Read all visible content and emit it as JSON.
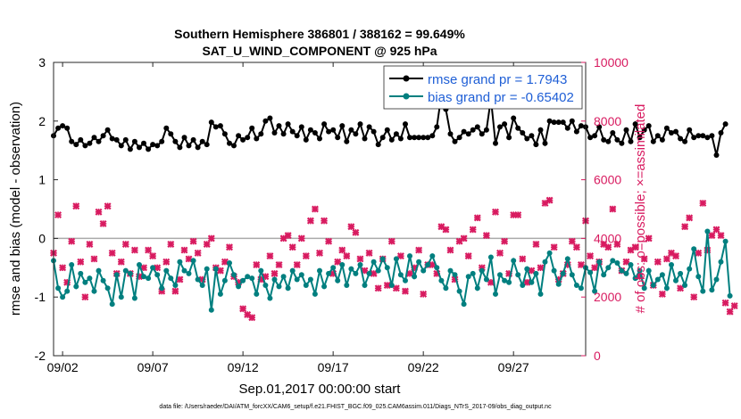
{
  "chart_data": {
    "type": "line",
    "title": [
      "Southern Hemisphere 386801 / 388162 = 99.649%",
      "SAT_U_WIND_COMPONENT @ 925 hPa"
    ],
    "xlabel": "Sep.01,2017 00:00:00 start",
    "ylabel_left": "rmse and bias (model - observation)",
    "ylabel_right": "# of obs: o=possible; ×=assimilated",
    "x_ticks": [
      {
        "day": 2,
        "label": "09/02"
      },
      {
        "day": 7,
        "label": "09/07"
      },
      {
        "day": 12,
        "label": "09/12"
      },
      {
        "day": 17,
        "label": "09/17"
      },
      {
        "day": 22,
        "label": "09/22"
      },
      {
        "day": 27,
        "label": "09/27"
      }
    ],
    "xlim": [
      1.5,
      31.0
    ],
    "ylim_left": [
      -2,
      3
    ],
    "yticks_left": [
      "-2",
      "-1",
      "0",
      "1",
      "2",
      "3"
    ],
    "ylim_right": [
      0,
      10000
    ],
    "yticks_right": [
      "0",
      "2000",
      "4000",
      "6000",
      "8000",
      "10000"
    ],
    "zero_line": 0,
    "legend": {
      "location": "top-right",
      "entries": [
        "rmse grand pr = 1.7943",
        "bias grand pr = -0.65402"
      ]
    },
    "x_start": 1.5,
    "x_step": 0.25,
    "series": [
      {
        "name": "rmse",
        "axis": "left",
        "color": "#000000",
        "values": [
          1.75,
          1.88,
          1.92,
          1.88,
          1.65,
          1.6,
          1.68,
          1.58,
          1.62,
          1.72,
          1.65,
          1.75,
          1.85,
          1.7,
          1.68,
          1.58,
          1.68,
          1.52,
          1.65,
          1.55,
          1.62,
          1.52,
          1.6,
          1.58,
          1.65,
          1.88,
          1.78,
          1.65,
          1.55,
          1.72,
          1.58,
          1.68,
          1.55,
          1.65,
          1.6,
          1.98,
          1.9,
          1.92,
          1.78,
          1.62,
          1.58,
          1.75,
          1.68,
          1.72,
          1.88,
          1.7,
          1.78,
          2.0,
          2.05,
          1.8,
          1.92,
          1.78,
          1.95,
          1.82,
          1.75,
          1.9,
          1.68,
          1.85,
          1.8,
          1.7,
          1.95,
          1.82,
          1.85,
          1.72,
          1.92,
          1.65,
          1.85,
          1.78,
          1.95,
          1.7,
          1.9,
          1.82,
          1.6,
          1.72,
          1.85,
          1.68,
          1.78,
          1.7,
          1.95,
          1.72,
          1.72,
          1.72,
          1.72,
          1.72,
          1.75,
          1.9,
          2.45,
          2.2,
          1.78,
          1.65,
          1.72,
          1.82,
          1.78,
          1.85,
          1.9,
          1.78,
          1.85,
          2.38,
          1.62,
          1.9,
          1.95,
          1.72,
          2.05,
          1.88,
          1.8,
          1.7,
          1.75,
          1.6,
          1.85,
          1.62,
          2.0,
          1.98,
          1.98,
          1.98,
          1.88,
          2.0,
          1.82,
          1.92,
          1.9,
          1.72,
          1.75,
          1.9,
          1.68,
          1.65,
          1.8,
          1.68,
          1.62,
          1.85,
          1.65,
          1.95,
          1.72,
          1.85,
          1.92,
          1.65,
          1.75,
          1.68,
          1.88,
          1.8,
          1.82,
          1.7,
          1.65,
          1.85,
          1.72,
          1.75,
          1.75,
          1.72,
          1.75,
          1.42,
          1.8,
          1.95
        ]
      },
      {
        "name": "bias",
        "axis": "left",
        "color": "#007f7f",
        "values": [
          -0.38,
          -0.85,
          -1.0,
          -0.9,
          -0.45,
          -0.82,
          -0.6,
          -0.75,
          -0.68,
          -0.9,
          -0.55,
          -0.72,
          -0.85,
          -1.12,
          -0.62,
          -1.0,
          -0.55,
          -0.6,
          -1.02,
          -0.45,
          -0.65,
          -0.68,
          -0.5,
          -0.62,
          -0.85,
          -0.55,
          -0.68,
          -0.8,
          -0.4,
          -0.55,
          -0.6,
          -0.38,
          -0.7,
          -0.8,
          -0.52,
          -1.22,
          -0.52,
          -0.95,
          -0.72,
          -0.42,
          -0.62,
          -0.82,
          -0.72,
          -0.65,
          -0.68,
          -0.95,
          -0.55,
          -0.8,
          -1.02,
          -0.7,
          -0.82,
          -0.65,
          -0.85,
          -0.55,
          -0.7,
          -0.62,
          -0.8,
          -0.7,
          -0.95,
          -0.55,
          -0.82,
          -0.6,
          -0.5,
          -0.72,
          -0.45,
          -0.8,
          -0.52,
          -0.6,
          -0.45,
          -0.8,
          -0.6,
          -0.4,
          -0.55,
          -0.35,
          -0.5,
          -0.8,
          -0.35,
          -0.62,
          -0.72,
          -0.3,
          -0.65,
          -0.4,
          -0.55,
          -0.45,
          -0.3,
          -0.5,
          -0.72,
          -0.85,
          -0.55,
          -0.62,
          -0.9,
          -1.12,
          -0.65,
          -0.6,
          -0.85,
          -0.55,
          -0.7,
          -0.32,
          -0.95,
          -0.62,
          -0.72,
          -0.75,
          -0.38,
          -0.62,
          -0.8,
          -0.52,
          -0.75,
          -0.6,
          -0.95,
          -0.4,
          -0.25,
          -0.55,
          -0.78,
          -0.6,
          -0.35,
          -0.62,
          -0.8,
          -0.85,
          -0.5,
          -0.58,
          -0.9,
          -0.4,
          -0.62,
          -0.5,
          -0.38,
          -0.42,
          -0.55,
          -0.6,
          -0.45,
          -0.68,
          -0.55,
          -0.85,
          -0.55,
          -0.8,
          -0.7,
          -0.62,
          -0.85,
          -0.45,
          -0.72,
          -0.6,
          -0.8,
          -0.52,
          -0.18,
          -0.65,
          -0.9,
          0.12,
          -0.88,
          -0.7,
          -0.4,
          -0.05,
          -0.98
        ]
      }
    ],
    "obs_possible_note": "circle markers hidden under crosses",
    "assimilated": {
      "name": "# assimilated",
      "axis": "right",
      "color": "#d81b60",
      "x_start": 1.5,
      "x_step": 0.25,
      "values": [
        3500,
        4800,
        3000,
        2500,
        3900,
        5100,
        3200,
        2000,
        3800,
        3300,
        4900,
        4500,
        5100,
        3500,
        2800,
        3200,
        3800,
        2800,
        3600,
        2700,
        3000,
        3600,
        3400,
        3000,
        2200,
        3200,
        3800,
        2200,
        2600,
        3600,
        3300,
        3900,
        3500,
        2600,
        3800,
        4000,
        3000,
        2900,
        3200,
        3700,
        2700,
        2500,
        1600,
        1400,
        1300,
        3100,
        2600,
        2700,
        3400,
        2800,
        3100,
        4000,
        4100,
        3700,
        3100,
        4000,
        3400,
        4600,
        5000,
        3500,
        4600,
        3900,
        2800,
        3200,
        3600,
        3400,
        4400,
        4200,
        3300,
        2900,
        3500,
        2800,
        2300,
        3300,
        2400,
        3900,
        2300,
        3400,
        2200,
        2800,
        3000,
        3600,
        2100,
        3100,
        3100,
        2800,
        4400,
        4300,
        3600,
        2600,
        3900,
        4000,
        3400,
        4300,
        4700,
        3000,
        4100,
        2500,
        4900,
        3500,
        3900,
        2800,
        4800,
        4800,
        3300,
        2500,
        2900,
        3800,
        3000,
        5200,
        5300,
        3700,
        2600,
        2800,
        3100,
        3900,
        3700,
        3100,
        4600,
        3400,
        3000,
        3200,
        3800,
        3700,
        5000,
        3800,
        2900,
        3200,
        3600,
        3700,
        2700,
        3300,
        4000,
        2400,
        3200,
        2100,
        3300,
        3500,
        3400,
        2300,
        4400,
        4700,
        2000,
        3500,
        5200,
        3600,
        4100,
        4300,
        4100,
        1800,
        1500,
        1700
      ]
    }
  }
}
